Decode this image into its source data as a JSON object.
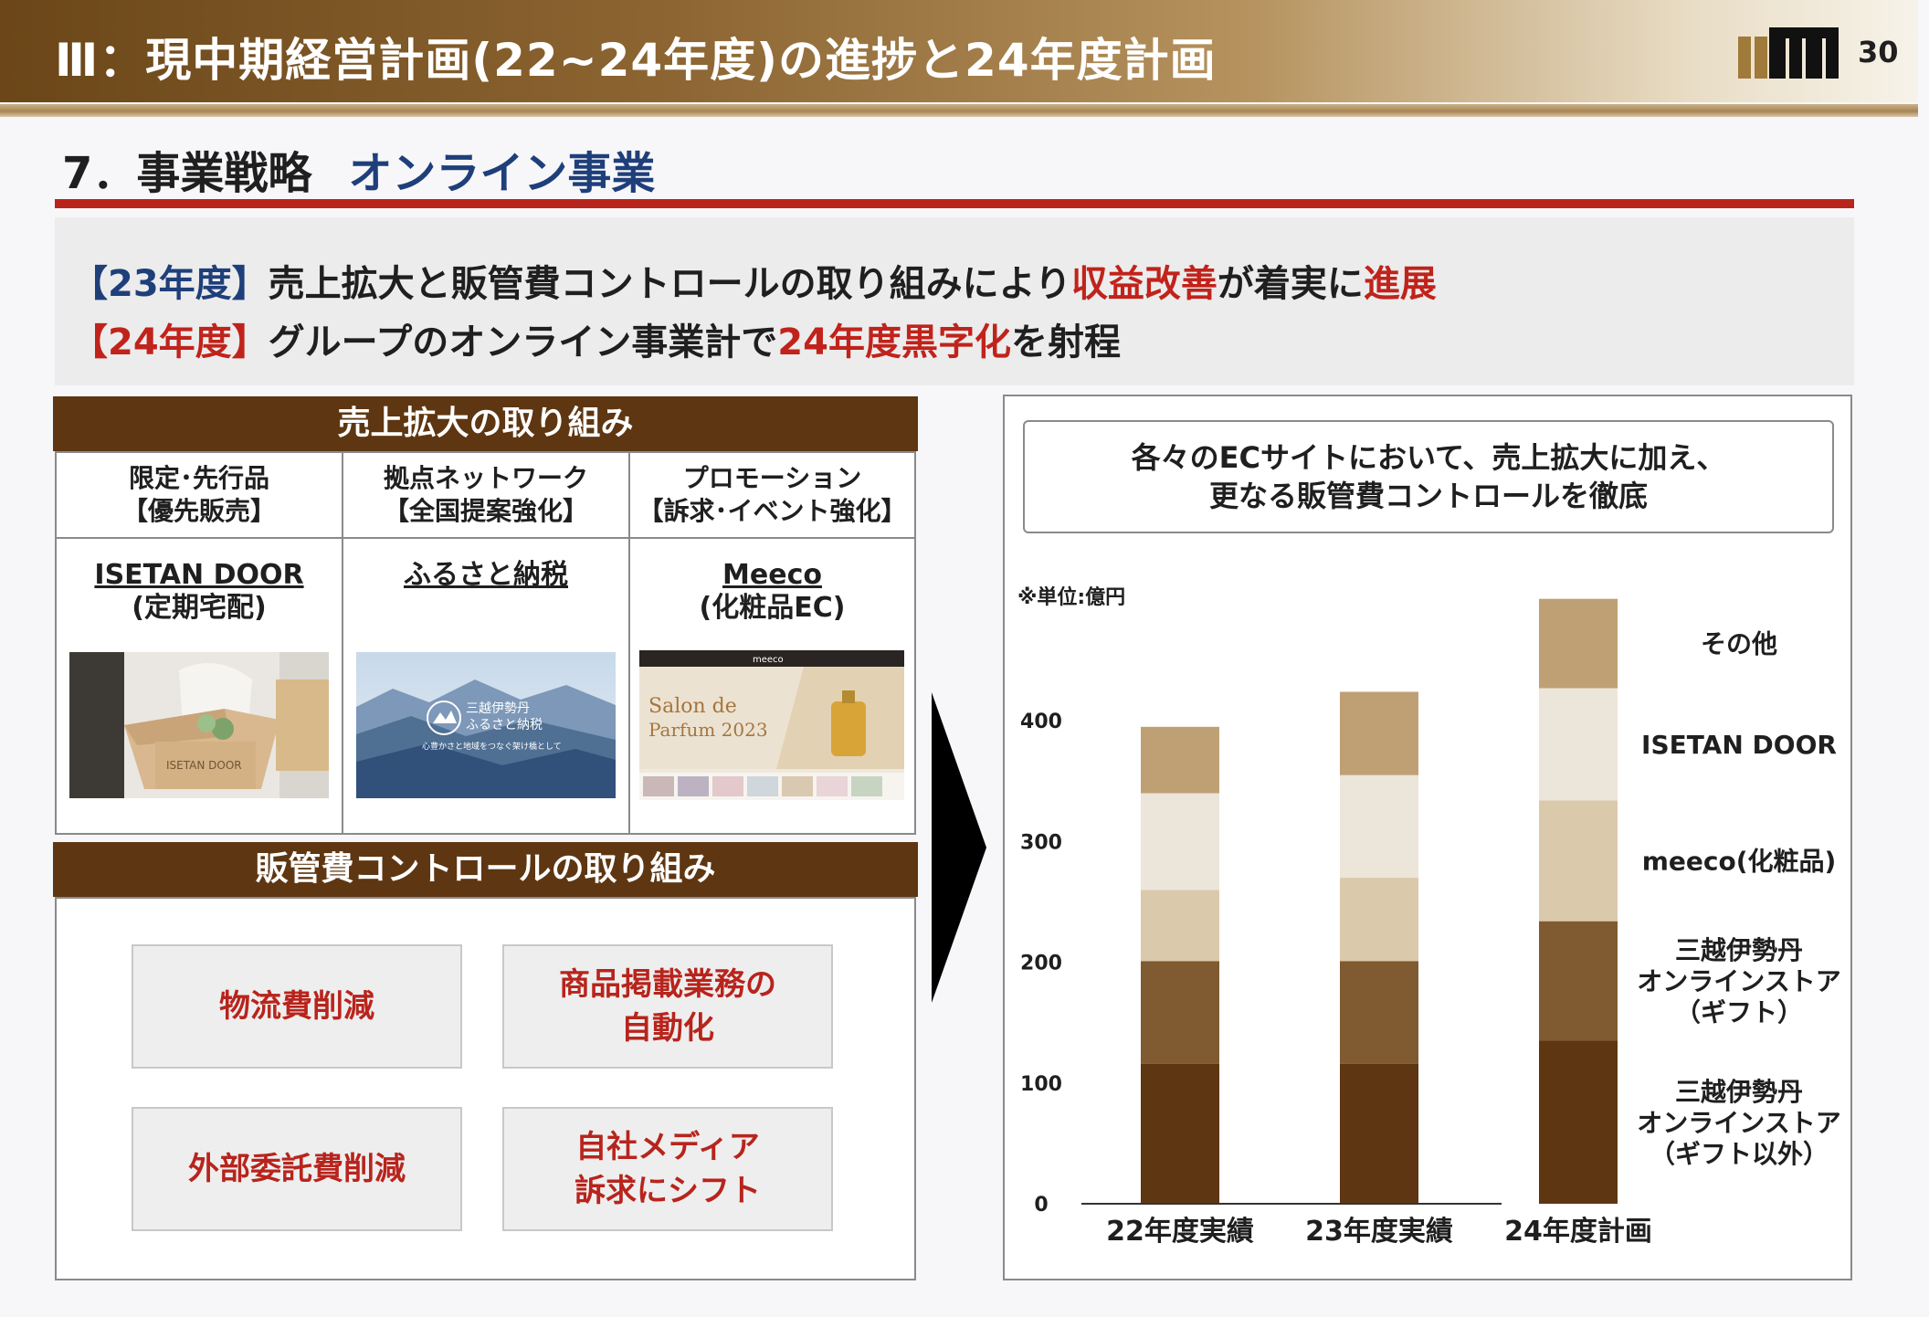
{
  "header": {
    "title": "Ⅲ：現中期経営計画(22~24年度)の進捗と24年度計画",
    "page_number": "30"
  },
  "section": {
    "number": "7．事業戦略",
    "name": "オンライン事業"
  },
  "summary": {
    "line1": {
      "tag": "【23年度】",
      "text1": "売上拡大と販管費コントロールの取り組みにより",
      "highlight1": "収益改善",
      "text2": "が着実に",
      "highlight2": "進展"
    },
    "line2": {
      "tag": "【24年度】",
      "text1": "グループのオンライン事業計で",
      "highlight1": "24年度黒字化",
      "text2": "を射程"
    }
  },
  "sales_panel": {
    "title": "売上拡大の取り組み",
    "columns": [
      {
        "head1": "限定･先行品",
        "head2": "【優先販売】",
        "name": "ISETAN DOOR",
        "sub": "(定期宅配)"
      },
      {
        "head1": "拠点ネットワーク",
        "head2": "【全国提案強化】",
        "name": "ふるさと納税",
        "sub": ""
      },
      {
        "head1": "プロモーション",
        "head2": "【訴求･イベント強化】",
        "name": "Meeco",
        "sub": "(化粧品EC)"
      }
    ],
    "thumb_texts": {
      "box_label": "ISETAN DOOR",
      "furusato_brand": "三越伊勢丹",
      "furusato_name": "ふるさと納税",
      "furusato_tag": "心豊かさと地域をつなぐ架け橋として",
      "meeco_logo": "meeco",
      "meeco_title1": "Salon de",
      "meeco_title2": "Parfum 2023"
    }
  },
  "cost_panel": {
    "title": "販管費コントロールの取り組み",
    "items": [
      {
        "line1": "物流費削減",
        "line2": ""
      },
      {
        "line1": "商品掲載業務の",
        "line2": "自動化"
      },
      {
        "line1": "外部委託費削減",
        "line2": ""
      },
      {
        "line1": "自社メディア",
        "line2": "訴求にシフト"
      }
    ]
  },
  "right_panel": {
    "callout_line1": "各々のECサイトにおいて、売上拡大に加え、",
    "callout_line2": "更なる販管費コントロールを徹底",
    "unit_note": "※単位:億円"
  },
  "colors": {
    "header_brown": "#6b4618",
    "panel_brown": "#5e3611",
    "accent_red": "#b8241c",
    "accent_blue": "#1f3f7a"
  },
  "chart_data": {
    "type": "bar",
    "stacked": true,
    "categories": [
      "22年度実績",
      "23年度実績",
      "24年度計画"
    ],
    "ylim": [
      0,
      500
    ],
    "y_ticks": [
      0,
      100,
      200,
      300,
      400
    ],
    "series": [
      {
        "name": "三越伊勢丹\nオンラインストア\n(ギフト以外)",
        "label_lines": [
          "三越伊勢丹",
          "オンラインストア",
          "（ギフト以外）"
        ],
        "color": "#5e3612",
        "values": [
          116,
          116,
          135
        ]
      },
      {
        "name": "三越伊勢丹\nオンラインストア\n(ギフト)",
        "label_lines": [
          "三越伊勢丹",
          "オンラインストア",
          "（ギフト）"
        ],
        "color": "#805a30",
        "values": [
          85,
          85,
          99
        ]
      },
      {
        "name": "meeco(化粧品)",
        "label_lines": [
          "meeco(化粧品)"
        ],
        "color": "#dbc9ab",
        "values": [
          59,
          69,
          100
        ]
      },
      {
        "name": "ISETAN DOOR",
        "label_lines": [
          "ISETAN DOOR"
        ],
        "color": "#ece6da",
        "values": [
          80,
          85,
          93
        ]
      },
      {
        "name": "その他",
        "label_lines": [
          "その他"
        ],
        "color": "#bfa074",
        "values": [
          55,
          69,
          74
        ]
      }
    ]
  }
}
